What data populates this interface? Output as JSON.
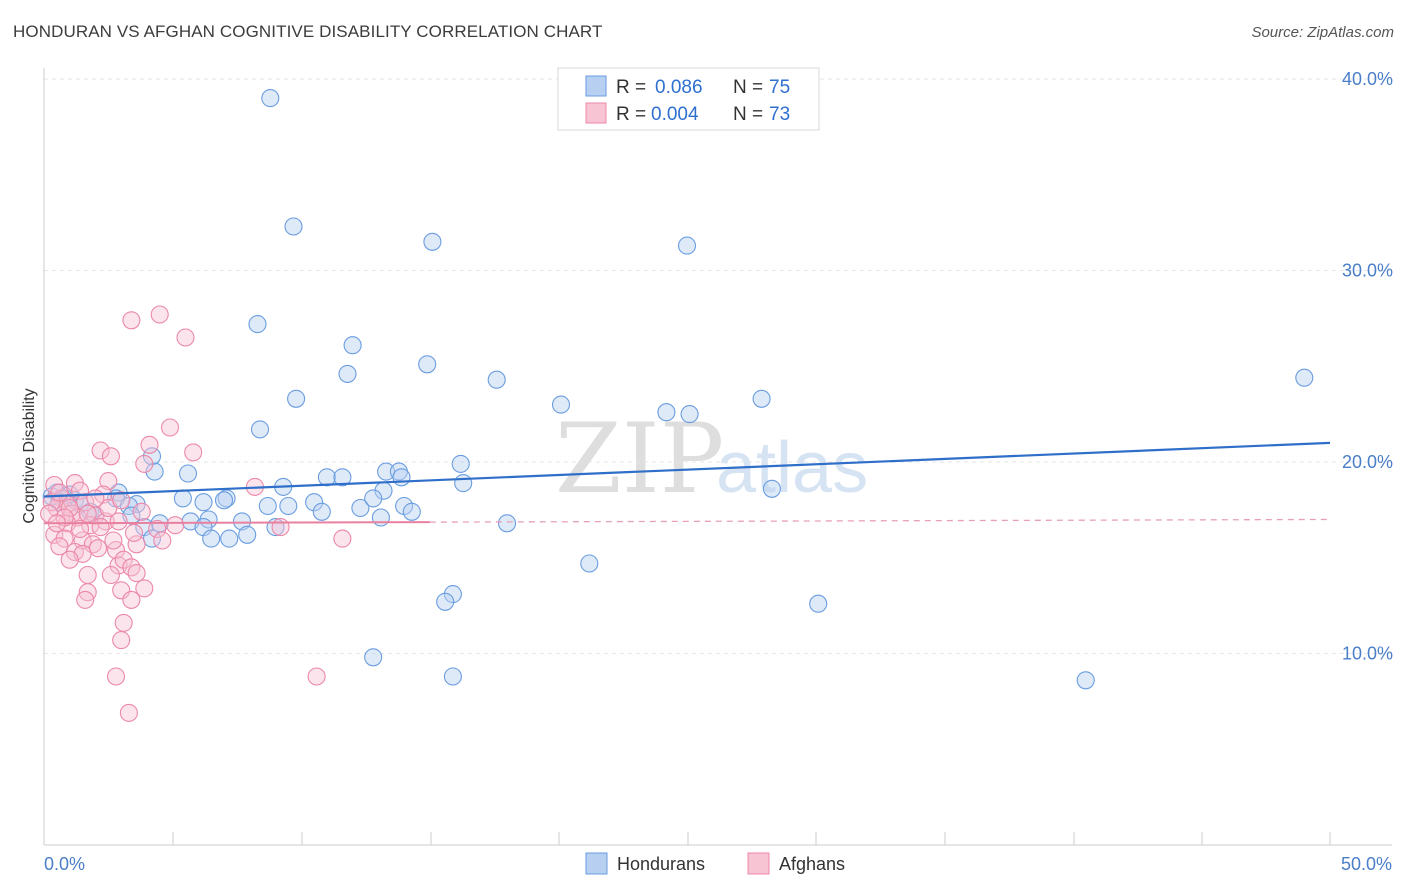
{
  "title": "HONDURAN VS AFGHAN COGNITIVE DISABILITY CORRELATION CHART",
  "source": "Source: ZipAtlas.com",
  "watermark": {
    "zip": "ZIP",
    "atlas": "atlas"
  },
  "colors": {
    "blue": "#6a9de0",
    "blue_fill": "#b7d0f2",
    "pink": "#ec88a8",
    "pink_fill": "#f7c4d4",
    "blue_line": "#2f6fc9",
    "pink_line": "#e8809f",
    "tick_text": "#4a7ec8"
  },
  "legend": {
    "r_label": "R =",
    "n_label": "N =",
    "rows": [
      {
        "r": "0.086",
        "n": "75"
      },
      {
        "r": "0.004",
        "n": "73"
      }
    ]
  },
  "chart_data": {
    "type": "scatter",
    "title": "HONDURAN VS AFGHAN COGNITIVE DISABILITY CORRELATION CHART",
    "xlabel": "",
    "ylabel": "Cognitive Disability",
    "xlim": [
      0,
      50
    ],
    "ylim": [
      0,
      42
    ],
    "x_tick_labels": [
      "0.0%",
      "50.0%"
    ],
    "y_ticks": [
      10,
      20,
      30,
      40
    ],
    "y_tick_labels": [
      "10.0%",
      "20.0%",
      "30.0%",
      "40.0%"
    ],
    "grid": true,
    "legend_placement": "top-center",
    "series": [
      {
        "name": "Hondurans",
        "trend": {
          "x": [
            0,
            50
          ],
          "y": [
            18.2,
            21.0
          ]
        },
        "points": [
          [
            8.8,
            39.0
          ],
          [
            9.7,
            32.3
          ],
          [
            15.1,
            31.5
          ],
          [
            25.0,
            31.3
          ],
          [
            8.3,
            27.2
          ],
          [
            12.0,
            26.1
          ],
          [
            11.8,
            24.6
          ],
          [
            14.9,
            25.1
          ],
          [
            17.6,
            24.3
          ],
          [
            9.8,
            23.3
          ],
          [
            20.1,
            23.0
          ],
          [
            24.2,
            22.6
          ],
          [
            25.1,
            22.5
          ],
          [
            27.9,
            23.3
          ],
          [
            8.4,
            21.7
          ],
          [
            4.2,
            20.3
          ],
          [
            4.3,
            19.5
          ],
          [
            5.6,
            19.4
          ],
          [
            16.2,
            19.9
          ],
          [
            11.0,
            19.2
          ],
          [
            11.6,
            19.2
          ],
          [
            13.3,
            19.5
          ],
          [
            13.8,
            19.5
          ],
          [
            13.9,
            19.2
          ],
          [
            16.3,
            18.9
          ],
          [
            9.3,
            18.7
          ],
          [
            13.2,
            18.5
          ],
          [
            28.3,
            18.6
          ],
          [
            0.5,
            18.4
          ],
          [
            2.9,
            18.4
          ],
          [
            0.8,
            18.1
          ],
          [
            1.2,
            18.0
          ],
          [
            1.4,
            17.8
          ],
          [
            2.8,
            18.1
          ],
          [
            3.6,
            17.8
          ],
          [
            5.4,
            18.1
          ],
          [
            6.2,
            17.9
          ],
          [
            7.1,
            18.1
          ],
          [
            7.0,
            18.0
          ],
          [
            3.3,
            17.7
          ],
          [
            9.5,
            17.7
          ],
          [
            10.5,
            17.9
          ],
          [
            10.8,
            17.4
          ],
          [
            12.3,
            17.6
          ],
          [
            12.8,
            18.1
          ],
          [
            14.0,
            17.7
          ],
          [
            14.3,
            17.4
          ],
          [
            8.7,
            17.7
          ],
          [
            1.8,
            17.4
          ],
          [
            2.0,
            17.2
          ],
          [
            3.4,
            17.2
          ],
          [
            4.5,
            16.8
          ],
          [
            5.7,
            16.9
          ],
          [
            6.4,
            17.0
          ],
          [
            7.7,
            16.9
          ],
          [
            9.0,
            16.6
          ],
          [
            13.1,
            17.1
          ],
          [
            18.0,
            16.8
          ],
          [
            3.9,
            16.6
          ],
          [
            4.2,
            16.0
          ],
          [
            6.2,
            16.6
          ],
          [
            6.5,
            16.0
          ],
          [
            7.2,
            16.0
          ],
          [
            7.9,
            16.2
          ],
          [
            21.2,
            14.7
          ],
          [
            15.9,
            13.1
          ],
          [
            15.6,
            12.7
          ],
          [
            30.1,
            12.6
          ],
          [
            12.8,
            9.8
          ],
          [
            15.9,
            8.8
          ],
          [
            40.5,
            8.6
          ],
          [
            49.0,
            24.4
          ],
          [
            0.3,
            18.2
          ],
          [
            0.6,
            17.9
          ],
          [
            1.0,
            18.3
          ]
        ]
      },
      {
        "name": "Afghans",
        "trend": {
          "x": [
            0,
            50
          ],
          "y": [
            16.8,
            17.0
          ]
        },
        "points": [
          [
            4.5,
            27.7
          ],
          [
            3.4,
            27.4
          ],
          [
            5.5,
            26.5
          ],
          [
            4.9,
            21.8
          ],
          [
            4.1,
            20.9
          ],
          [
            2.2,
            20.6
          ],
          [
            5.8,
            20.5
          ],
          [
            2.6,
            20.3
          ],
          [
            3.9,
            19.9
          ],
          [
            8.2,
            18.7
          ],
          [
            1.2,
            18.9
          ],
          [
            0.4,
            18.8
          ],
          [
            2.5,
            19.0
          ],
          [
            1.4,
            18.5
          ],
          [
            0.7,
            18.1
          ],
          [
            0.9,
            17.8
          ],
          [
            1.6,
            17.9
          ],
          [
            2.3,
            18.3
          ],
          [
            3.8,
            17.4
          ],
          [
            0.5,
            17.6
          ],
          [
            1.1,
            17.3
          ],
          [
            1.3,
            17.1
          ],
          [
            2.0,
            17.2
          ],
          [
            2.4,
            16.9
          ],
          [
            1.8,
            16.7
          ],
          [
            0.9,
            16.8
          ],
          [
            2.9,
            16.9
          ],
          [
            4.4,
            16.5
          ],
          [
            5.1,
            16.7
          ],
          [
            9.2,
            16.6
          ],
          [
            11.6,
            16.0
          ],
          [
            0.4,
            16.2
          ],
          [
            0.8,
            16.0
          ],
          [
            1.5,
            15.9
          ],
          [
            1.9,
            15.7
          ],
          [
            2.1,
            15.5
          ],
          [
            0.6,
            15.6
          ],
          [
            1.2,
            15.3
          ],
          [
            1.5,
            15.2
          ],
          [
            3.6,
            15.7
          ],
          [
            4.6,
            15.9
          ],
          [
            2.8,
            15.4
          ],
          [
            1.0,
            14.9
          ],
          [
            2.9,
            14.6
          ],
          [
            3.1,
            14.9
          ],
          [
            3.4,
            14.5
          ],
          [
            1.7,
            14.1
          ],
          [
            2.6,
            14.1
          ],
          [
            3.6,
            14.2
          ],
          [
            1.7,
            13.2
          ],
          [
            3.0,
            13.3
          ],
          [
            3.9,
            13.4
          ],
          [
            1.6,
            12.8
          ],
          [
            3.4,
            12.8
          ],
          [
            3.1,
            11.6
          ],
          [
            3.0,
            10.7
          ],
          [
            2.8,
            8.8
          ],
          [
            10.6,
            8.8
          ],
          [
            3.3,
            6.9
          ],
          [
            0.3,
            17.9
          ],
          [
            0.6,
            18.4
          ],
          [
            1.0,
            17.6
          ],
          [
            1.4,
            16.5
          ],
          [
            2.2,
            16.6
          ],
          [
            2.5,
            17.6
          ],
          [
            3.0,
            18.0
          ],
          [
            0.8,
            17.1
          ],
          [
            1.7,
            17.3
          ],
          [
            2.7,
            15.9
          ],
          [
            3.5,
            16.3
          ],
          [
            0.2,
            17.3
          ],
          [
            0.5,
            16.8
          ],
          [
            2.0,
            18.1
          ]
        ]
      }
    ]
  },
  "bottom_legend": [
    "Hondurans",
    "Afghans"
  ]
}
